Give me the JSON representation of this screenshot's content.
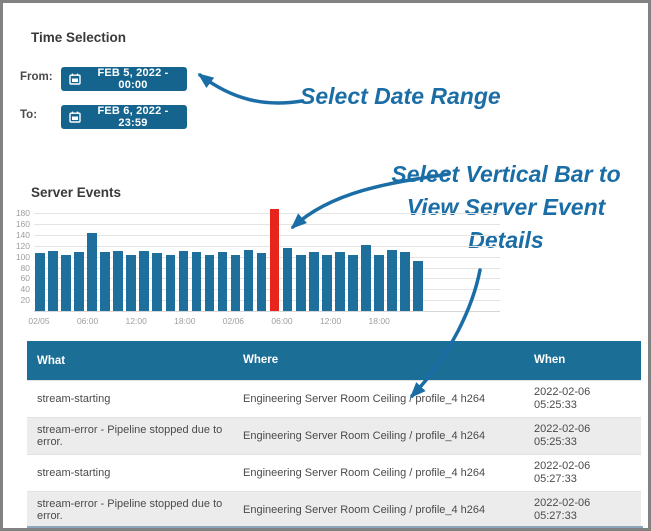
{
  "time_selection": {
    "title": "Time Selection",
    "from_label": "From:",
    "from_value": "FEB 5, 2022 - 00:00",
    "to_label": "To:",
    "to_value": "FEB 6, 2022 - 23:59"
  },
  "annotations": {
    "date_range": "Select Date Range",
    "bar_line1": "Select Vertical Bar to",
    "bar_line2": "View Server Event",
    "bar_line3": "Details",
    "color": "#1b6da6"
  },
  "server_events": {
    "title": "Server Events"
  },
  "chart_data": {
    "type": "bar",
    "title": "Server Events",
    "values": [
      107,
      110,
      104,
      108,
      143,
      108,
      110,
      104,
      110,
      107,
      104,
      111,
      109,
      104,
      108,
      104,
      113,
      107,
      188,
      116,
      104,
      108,
      104,
      108,
      104,
      121,
      104,
      112,
      108,
      93
    ],
    "highlight_index": 18,
    "bar_color": "#1f6f9c",
    "highlight_color": "#e8251d",
    "y_ticks": [
      20,
      40,
      60,
      80,
      100,
      120,
      140,
      160,
      180
    ],
    "ylim": [
      0,
      190
    ],
    "x_tick_labels": [
      "02/05",
      "06:00",
      "12:00",
      "18:00",
      "02/06",
      "06:00",
      "12:00",
      "18:00"
    ],
    "grid": true,
    "legend": false
  },
  "table": {
    "headers": [
      "What",
      "Where",
      "When"
    ],
    "rows": [
      {
        "what": "stream-starting",
        "where": "Engineering Server Room Ceiling / profile_4 h264",
        "when_date": "2022-02-06",
        "when_time": "05:25:33"
      },
      {
        "what": "stream-error - Pipeline stopped due to error.",
        "where": "Engineering Server Room Ceiling / profile_4 h264",
        "when_date": "2022-02-06",
        "when_time": "05:25:33"
      },
      {
        "what": "stream-starting",
        "where": "Engineering Server Room Ceiling / profile_4 h264",
        "when_date": "2022-02-06",
        "when_time": "05:27:33"
      },
      {
        "what": "stream-error - Pipeline stopped due to error.",
        "where": "Engineering Server Room Ceiling / profile_4 h264",
        "when_date": "2022-02-06",
        "when_time": "05:27:33"
      }
    ]
  },
  "colors": {
    "button_blue": "#14648e",
    "header_blue": "#1b6e96",
    "bar_blue": "#1f6f9c",
    "highlight_red": "#e8251d",
    "annotation_blue": "#1b6da6",
    "alt_row": "#ececec"
  }
}
